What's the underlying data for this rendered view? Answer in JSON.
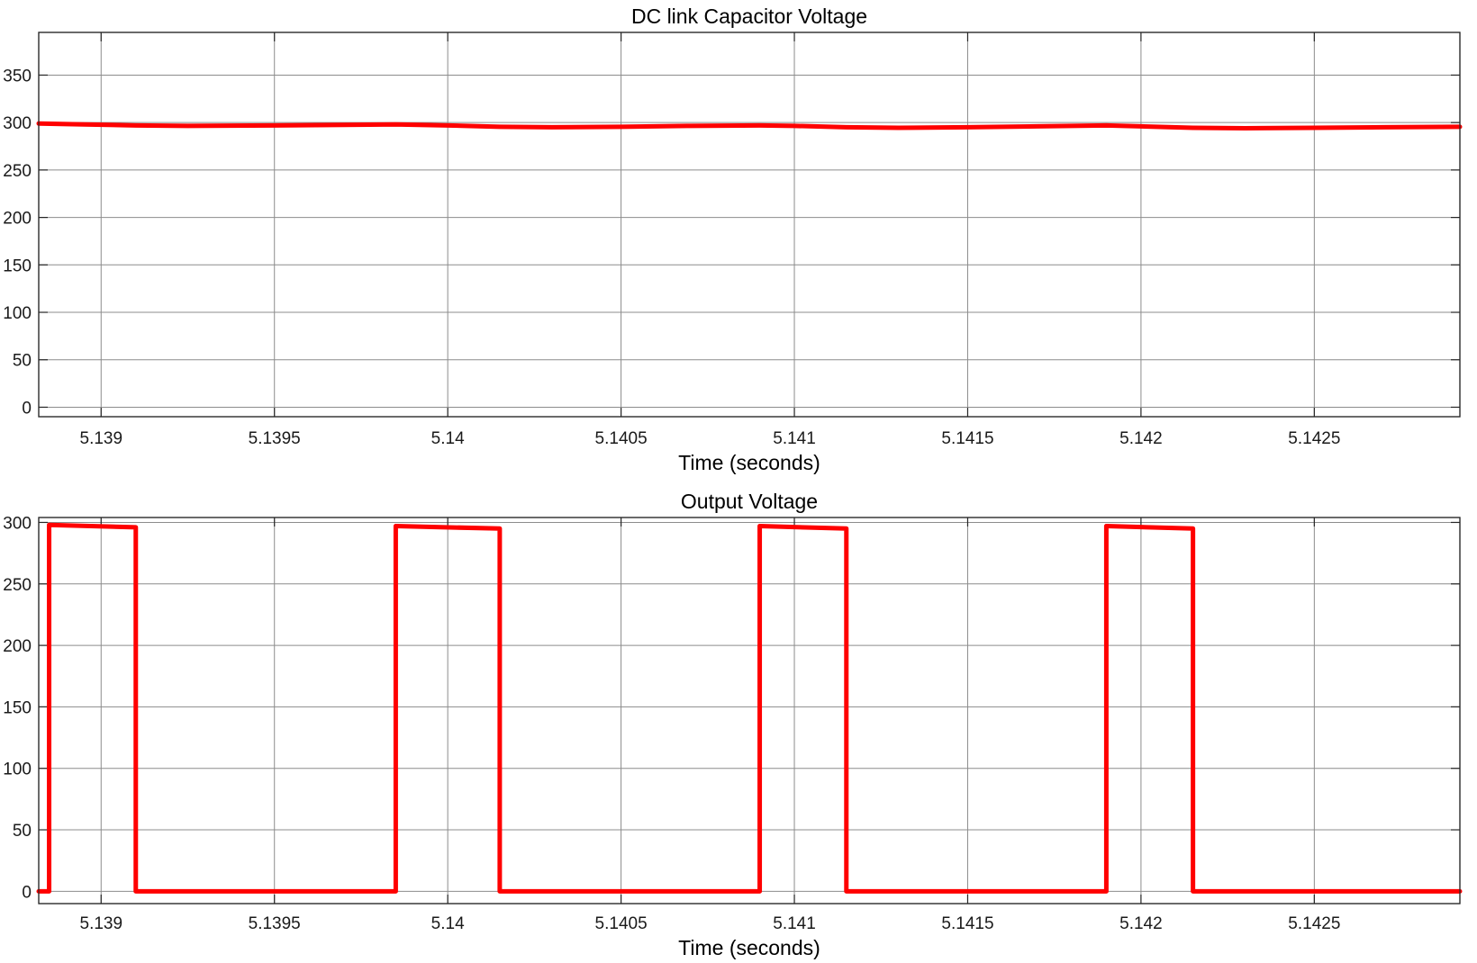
{
  "chart_data": [
    {
      "type": "line",
      "title": "DC link Capacitor Voltage",
      "xlabel": "Time (seconds)",
      "ylabel": "",
      "xlim": [
        5.13882,
        5.14292
      ],
      "ylim": [
        -10,
        395
      ],
      "xticks": [
        5.139,
        5.1395,
        5.14,
        5.1405,
        5.141,
        5.1415,
        5.142,
        5.1425
      ],
      "xtick_labels": [
        "5.139",
        "5.1395",
        "5.14",
        "5.1405",
        "5.141",
        "5.1415",
        "5.142",
        "5.1425"
      ],
      "yticks": [
        0,
        50,
        100,
        150,
        200,
        250,
        300,
        350
      ],
      "ytick_labels": [
        "0",
        "50",
        "100",
        "150",
        "200",
        "250",
        "300",
        "350"
      ],
      "grid": true,
      "series": [
        {
          "color": "#ff0000",
          "x": [
            5.13882,
            5.13895,
            5.1391,
            5.13925,
            5.1395,
            5.1397,
            5.13985,
            5.14,
            5.14015,
            5.1403,
            5.1405,
            5.1407,
            5.1409,
            5.141,
            5.14115,
            5.1413,
            5.1415,
            5.1417,
            5.1419,
            5.142,
            5.14215,
            5.1423,
            5.1425,
            5.1427,
            5.14292
          ],
          "y": [
            299,
            298,
            297,
            296.5,
            297,
            297.5,
            298,
            297,
            295.5,
            295,
            295.5,
            296.5,
            297,
            296.5,
            295,
            294.5,
            295,
            296,
            297,
            296,
            294.5,
            294,
            294.5,
            295,
            295.5
          ]
        }
      ]
    },
    {
      "type": "line",
      "title": "Output Voltage",
      "xlabel": "Time (seconds)",
      "ylabel": "",
      "xlim": [
        5.13882,
        5.14292
      ],
      "ylim": [
        -10,
        304
      ],
      "xticks": [
        5.139,
        5.1395,
        5.14,
        5.1405,
        5.141,
        5.1415,
        5.142,
        5.1425
      ],
      "xtick_labels": [
        "5.139",
        "5.1395",
        "5.14",
        "5.1405",
        "5.141",
        "5.1415",
        "5.142",
        "5.1425"
      ],
      "yticks": [
        0,
        50,
        100,
        150,
        200,
        250,
        300
      ],
      "ytick_labels": [
        "0",
        "50",
        "100",
        "150",
        "200",
        "250",
        "300"
      ],
      "grid": true,
      "series": [
        {
          "color": "#ff0000",
          "x": [
            5.13882,
            5.13885,
            5.13885,
            5.1391,
            5.1391,
            5.13985,
            5.13985,
            5.14015,
            5.14015,
            5.1409,
            5.1409,
            5.14115,
            5.14115,
            5.1419,
            5.1419,
            5.14215,
            5.14215,
            5.14292
          ],
          "y": [
            0,
            0,
            298,
            296,
            0,
            0,
            297,
            295,
            0,
            0,
            297,
            295,
            0,
            0,
            297,
            295,
            0,
            0
          ]
        }
      ]
    }
  ]
}
